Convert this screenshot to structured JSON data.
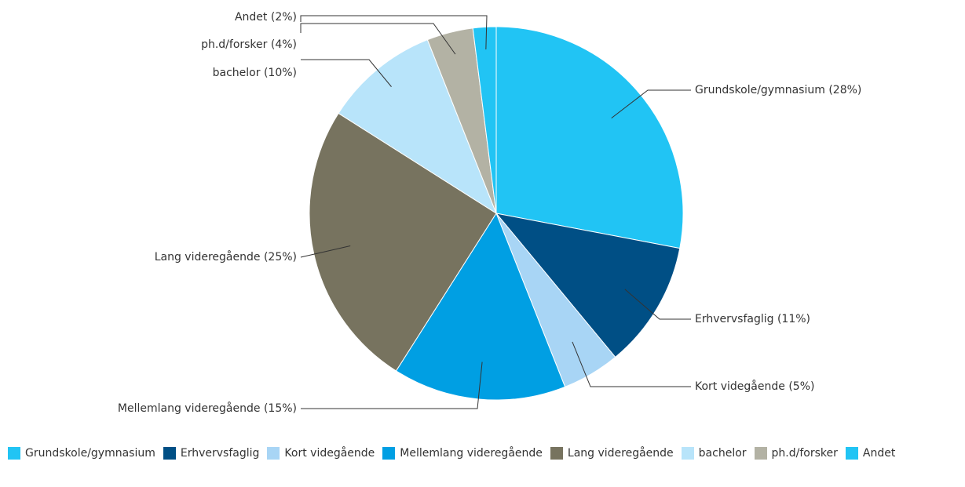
{
  "chart_data": {
    "type": "pie",
    "categories": [
      "Grundskole/gymnasium",
      "Erhvervsfaglig",
      "Kort videgående",
      "Mellemlang videregående",
      "Lang videregående",
      "bachelor",
      "ph.d/forsker",
      "Andet"
    ],
    "values": [
      28,
      11,
      5,
      15,
      25,
      10,
      4,
      2
    ],
    "value_labels": [
      "Grundskole/gymnasium (28%)",
      "Erhvervsfaglig (11%)",
      "Kort videgående (5%)",
      "Mellemlang videregående (15%)",
      "Lang videregående (25%)",
      "bachelor (10%)",
      "ph.d/forsker (4%)",
      "Andet (2%)"
    ],
    "colors": [
      "#21c4f4",
      "#004f85",
      "#a8d5f5",
      "#009fe3",
      "#77735f",
      "#b8e4fa",
      "#b3b2a4",
      "#21c4f4"
    ],
    "legend": "bottom"
  }
}
